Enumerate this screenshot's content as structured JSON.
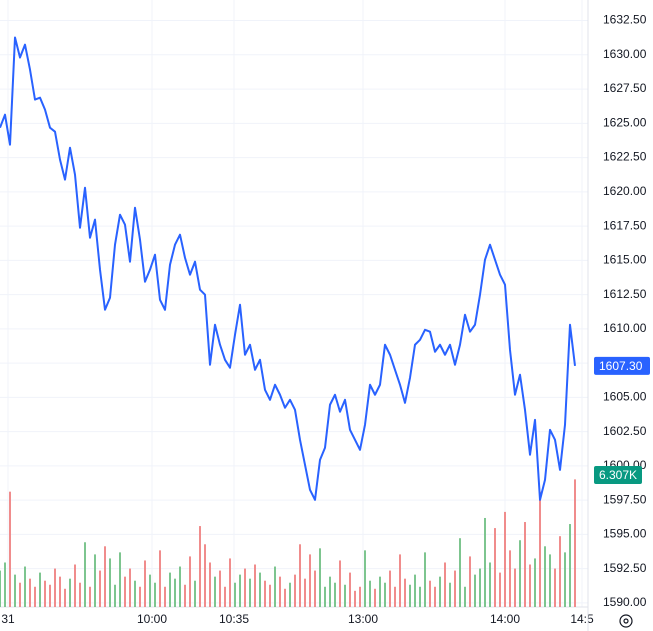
{
  "chart_data": {
    "type": "line",
    "series": [
      {
        "color": "#2962ff",
        "values": [
          1624.68,
          1625.63,
          1623.44,
          1631.26,
          1629.8,
          1630.74,
          1628.92,
          1626.73,
          1626.87,
          1626.0,
          1624.68,
          1624.39,
          1622.35,
          1620.89,
          1623.22,
          1621.25,
          1617.38,
          1620.3,
          1616.65,
          1617.97,
          1614.32,
          1611.39,
          1612.27,
          1616.14,
          1618.33,
          1617.6,
          1614.9,
          1618.84,
          1616.51,
          1613.44,
          1614.32,
          1615.41,
          1612.12,
          1611.39,
          1614.68,
          1616.14,
          1616.87,
          1615.19,
          1613.95,
          1614.9,
          1612.86,
          1612.49,
          1607.38,
          1610.3,
          1608.84,
          1607.74,
          1607.16,
          1609.57,
          1611.76,
          1608.11,
          1608.84,
          1607.01,
          1607.74,
          1605.55,
          1604.82,
          1605.92,
          1605.19,
          1604.24,
          1604.82,
          1604.09,
          1601.9,
          1600.08,
          1598.25,
          1597.52,
          1600.44,
          1601.32,
          1604.46,
          1605.19,
          1603.95,
          1604.82,
          1602.63,
          1601.9,
          1601.17,
          1603.0,
          1605.92,
          1605.19,
          1605.92,
          1608.84,
          1608.11,
          1607.01,
          1605.92,
          1604.6,
          1606.43,
          1608.84,
          1609.2,
          1609.93,
          1609.79,
          1608.33,
          1608.84,
          1608.11,
          1608.84,
          1607.38,
          1608.84,
          1611.03,
          1609.79,
          1610.3,
          1612.49,
          1615.05,
          1616.14,
          1615.05,
          1613.95,
          1613.22,
          1608.47,
          1605.19,
          1606.65,
          1604.09,
          1600.81,
          1603.36,
          1597.52,
          1598.98,
          1602.63,
          1601.9,
          1599.71,
          1603.0,
          1610.3,
          1607.3
        ]
      }
    ],
    "last_value_label": "1607.30",
    "volume": [
      1.8,
      2.2,
      5.7,
      1.6,
      1.2,
      2.0,
      1.4,
      1.0,
      1.7,
      1.3,
      1.1,
      1.9,
      1.5,
      0.9,
      1.4,
      2.1,
      1.2,
      3.2,
      1.0,
      2.6,
      1.8,
      3.0,
      2.4,
      1.1,
      2.7,
      1.5,
      1.9,
      1.3,
      1.0,
      2.3,
      1.6,
      1.2,
      2.8,
      1.0,
      1.7,
      1.4,
      2.0,
      1.1,
      2.5,
      1.3,
      4.0,
      3.1,
      2.2,
      1.5,
      1.8,
      1.0,
      2.4,
      1.2,
      1.6,
      1.9,
      1.4,
      2.1,
      1.7,
      1.3,
      1.1,
      2.0,
      1.5,
      0.9,
      1.2,
      1.6,
      3.1,
      1.4,
      2.6,
      1.8,
      2.9,
      1.0,
      1.5,
      1.2,
      2.3,
      1.1,
      1.7,
      0.8,
      1.0,
      2.8,
      1.3,
      0.9,
      1.5,
      1.2,
      1.8,
      1.0,
      2.6,
      1.4,
      1.1,
      1.6,
      1.0,
      2.7,
      1.3,
      1.0,
      1.5,
      2.2,
      1.2,
      1.8,
      3.4,
      1.0,
      2.5,
      1.6,
      1.9,
      4.4,
      2.2,
      3.9,
      1.7,
      4.7,
      2.8,
      1.9,
      3.3,
      4.2,
      2.1,
      2.4,
      5.7,
      3.0,
      2.6,
      1.9,
      3.5,
      2.7,
      4.1,
      6.307
    ],
    "volume_last_label": "6.307K",
    "up_color": "#7dc58f",
    "down_color": "#f08c8c",
    "volume_label_color": "#089981",
    "volume_ylim": [
      0,
      30
    ],
    "xlim": [
      0,
      117.6
    ],
    "xticks": [
      {
        "value": 1.6,
        "label": "31"
      },
      {
        "value": 30.4,
        "label": "10:00"
      },
      {
        "value": 46.8,
        "label": "10:35"
      },
      {
        "value": 72.6,
        "label": "13:00"
      },
      {
        "value": 101,
        "label": "14:00"
      },
      {
        "value": 116.4,
        "label": "14:5"
      }
    ],
    "ylim": [
      1589.7,
      1634.0
    ],
    "yticks": [
      {
        "value": 1590,
        "label": "1590.00"
      },
      {
        "value": 1592.5,
        "label": "1592.50"
      },
      {
        "value": 1595,
        "label": "1595.00"
      },
      {
        "value": 1597.5,
        "label": "1597.50"
      },
      {
        "value": 1600,
        "label": "1600.00"
      },
      {
        "value": 1602.5,
        "label": "1602.50"
      },
      {
        "value": 1605,
        "label": "1605.00"
      },
      {
        "value": 1607.5,
        "label": "1607.50"
      },
      {
        "value": 1610,
        "label": "1610.00"
      },
      {
        "value": 1612.5,
        "label": "1612.50"
      },
      {
        "value": 1615,
        "label": "1615.00"
      },
      {
        "value": 1617.5,
        "label": "1617.50"
      },
      {
        "value": 1620,
        "label": "1620.00"
      },
      {
        "value": 1622.5,
        "label": "1622.50"
      },
      {
        "value": 1625,
        "label": "1625.00"
      },
      {
        "value": 1627.5,
        "label": "1627.50"
      },
      {
        "value": 1630,
        "label": "1630.00"
      },
      {
        "value": 1632.5,
        "label": "1632.50"
      }
    ],
    "grid": true
  }
}
